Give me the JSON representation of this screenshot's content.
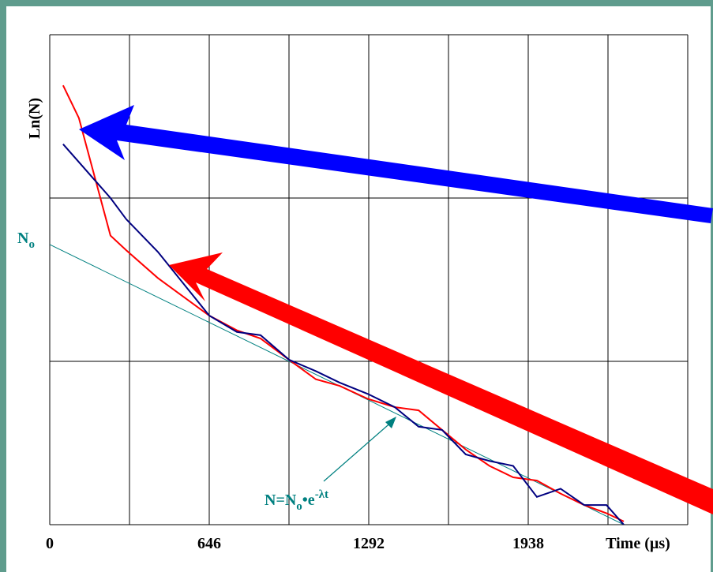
{
  "chart_data": {
    "type": "line",
    "y_label": "Ln(N)",
    "x_label": "Time (µs)",
    "fit_label": {
      "base": "N",
      "sub": "o"
    },
    "formula": {
      "p1": "N=N",
      "p2": "o",
      "p3": "•e",
      "p4": "-λt"
    },
    "xlim": [
      0,
      2584
    ],
    "ylim": [
      0,
      3
    ],
    "xticks": [
      0,
      646,
      1292,
      1938
    ],
    "xgrid": [
      0,
      323,
      646,
      969,
      1292,
      1615,
      1938,
      2261,
      2584
    ],
    "ygrid": [
      0,
      1,
      2,
      3
    ],
    "grid": true,
    "x": [
      54,
      118,
      246,
      310,
      438,
      646,
      758,
      854,
      969,
      1078,
      1174,
      1289,
      1397,
      1494,
      1589,
      1685,
      1781,
      1877,
      1973,
      2069,
      2165,
      2255,
      2325
    ],
    "series": [
      {
        "color": "#ff0000",
        "values": [
          2.69,
          2.49,
          1.77,
          1.68,
          1.51,
          1.28,
          1.19,
          1.14,
          1.01,
          0.89,
          0.85,
          0.77,
          0.72,
          0.7,
          0.58,
          0.46,
          0.36,
          0.29,
          0.27,
          0.19,
          0.12,
          0.07,
          0.02
        ]
      },
      {
        "color": "#000080",
        "values": [
          2.33,
          2.22,
          2.0,
          1.87,
          1.67,
          1.28,
          1.18,
          1.16,
          1.01,
          0.94,
          0.87,
          0.8,
          0.72,
          0.6,
          0.58,
          0.43,
          0.39,
          0.36,
          0.17,
          0.22,
          0.12,
          0.12,
          0
        ]
      }
    ],
    "fit": {
      "color": "#008080",
      "x": [
        0,
        2325
      ],
      "values": [
        1.715,
        0
      ]
    }
  }
}
